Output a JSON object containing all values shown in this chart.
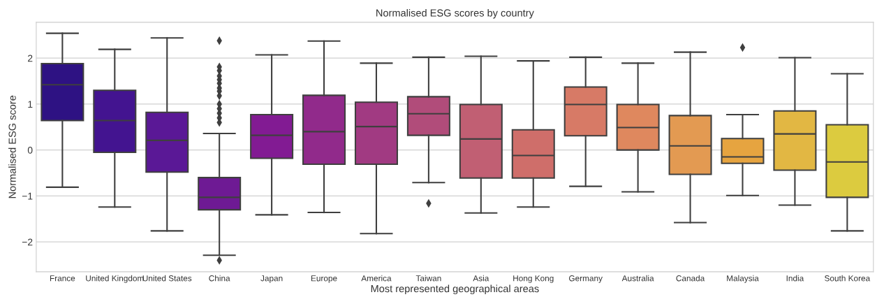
{
  "chart_data": {
    "type": "box",
    "title": "Normalised ESG scores by country",
    "xlabel": "Most represented geographical areas",
    "ylabel": "Normalised ESG score",
    "categories": [
      "France",
      "United Kingdom",
      "United States",
      "China",
      "Japan",
      "Europe",
      "America",
      "Taiwan",
      "Asia",
      "Hong Kong",
      "Germany",
      "Australia",
      "Canada",
      "Malaysia",
      "India",
      "South Korea"
    ],
    "colors": [
      "#2e1283",
      "#431490",
      "#5a1896",
      "#6e1a94",
      "#821b93",
      "#912a8b",
      "#a13a82",
      "#b14c7a",
      "#c15f73",
      "#cf6e6a",
      "#d77a66",
      "#df885e",
      "#e39a52",
      "#e6a440",
      "#e2b743",
      "#dccb3f"
    ],
    "boxes": [
      {
        "low": -0.81,
        "q1": 0.64,
        "median": 1.42,
        "q3": 1.88,
        "high": 2.54
      },
      {
        "low": -1.24,
        "q1": -0.05,
        "median": 0.64,
        "q3": 1.3,
        "high": 2.19
      },
      {
        "low": -1.76,
        "q1": -0.48,
        "median": 0.21,
        "q3": 0.82,
        "high": 2.44
      },
      {
        "low": -2.29,
        "q1": -1.3,
        "median": -1.03,
        "q3": -0.6,
        "high": 0.36,
        "outliers": [
          2.38,
          1.81,
          1.73,
          1.61,
          1.53,
          1.45,
          1.35,
          1.28,
          1.18,
          1.0,
          0.9,
          0.8,
          0.7,
          0.6,
          -2.4
        ]
      },
      {
        "low": -1.41,
        "q1": -0.18,
        "median": 0.32,
        "q3": 0.77,
        "high": 2.07
      },
      {
        "low": -1.36,
        "q1": -0.31,
        "median": 0.4,
        "q3": 1.19,
        "high": 2.37
      },
      {
        "low": -1.82,
        "q1": -0.31,
        "median": 0.51,
        "q3": 1.04,
        "high": 1.89
      },
      {
        "low": -0.71,
        "q1": 0.32,
        "median": 0.79,
        "q3": 1.16,
        "high": 2.02,
        "outliers": [
          -1.16
        ]
      },
      {
        "low": -1.37,
        "q1": -0.61,
        "median": 0.24,
        "q3": 0.99,
        "high": 2.04
      },
      {
        "low": -1.24,
        "q1": -0.61,
        "median": -0.12,
        "q3": 0.44,
        "high": 1.94
      },
      {
        "low": -0.79,
        "q1": 0.31,
        "median": 0.99,
        "q3": 1.37,
        "high": 2.02
      },
      {
        "low": -0.91,
        "q1": 0.0,
        "median": 0.49,
        "q3": 0.99,
        "high": 1.89
      },
      {
        "low": -1.58,
        "q1": -0.53,
        "median": 0.09,
        "q3": 0.75,
        "high": 2.13
      },
      {
        "low": -0.99,
        "q1": -0.29,
        "median": -0.15,
        "q3": 0.25,
        "high": 0.77,
        "outliers": [
          2.23
        ]
      },
      {
        "low": -1.2,
        "q1": -0.44,
        "median": 0.35,
        "q3": 0.85,
        "high": 2.01
      },
      {
        "low": -1.76,
        "q1": -1.03,
        "median": -0.26,
        "q3": 0.55,
        "high": 1.66
      }
    ],
    "ylim": [
      -2.65,
      2.78
    ],
    "yticks": [
      {
        "value": -2,
        "label": "−2"
      },
      {
        "value": -1,
        "label": "−1"
      },
      0,
      1,
      2
    ],
    "grid": "y",
    "marker": "diamond"
  }
}
